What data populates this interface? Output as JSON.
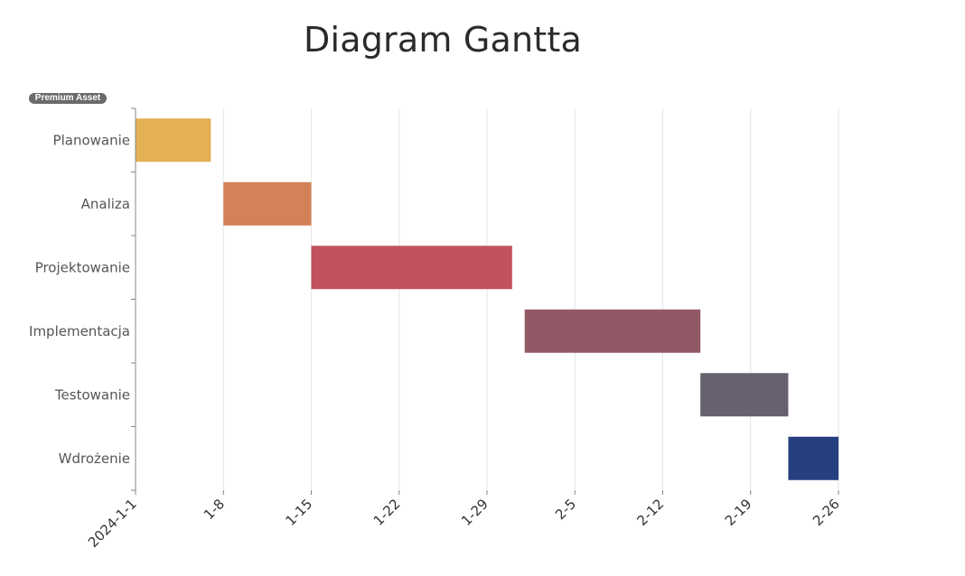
{
  "chart_data": {
    "type": "bar",
    "orientation": "horizontal-gantt",
    "title": "Diagram Gantta",
    "badge": "Premium Asset",
    "x_axis": {
      "type": "date",
      "range": [
        "2024-01-01",
        "2024-02-26"
      ],
      "ticks": [
        {
          "date": "2024-01-01",
          "label": "2024-1-1"
        },
        {
          "date": "2024-01-08",
          "label": "1-8"
        },
        {
          "date": "2024-01-15",
          "label": "1-15"
        },
        {
          "date": "2024-01-22",
          "label": "1-22"
        },
        {
          "date": "2024-01-29",
          "label": "1-29"
        },
        {
          "date": "2024-02-05",
          "label": "2-5"
        },
        {
          "date": "2024-02-12",
          "label": "2-12"
        },
        {
          "date": "2024-02-19",
          "label": "2-19"
        },
        {
          "date": "2024-02-26",
          "label": "2-26"
        }
      ],
      "grid": true
    },
    "tasks": [
      {
        "name": "Planowanie",
        "start": "2024-01-01",
        "end": "2024-01-07",
        "color": "#E3B053"
      },
      {
        "name": "Analiza",
        "start": "2024-01-08",
        "end": "2024-01-15",
        "color": "#D38157"
      },
      {
        "name": "Projektowanie",
        "start": "2024-01-15",
        "end": "2024-01-31",
        "color": "#C2525E"
      },
      {
        "name": "Implementacja",
        "start": "2024-02-01",
        "end": "2024-02-15",
        "color": "#925866"
      },
      {
        "name": "Testowanie",
        "start": "2024-02-15",
        "end": "2024-02-22",
        "color": "#67606F"
      },
      {
        "name": "Wdrożenie",
        "start": "2024-02-22",
        "end": "2024-02-26",
        "color": "#263F7E"
      }
    ]
  }
}
